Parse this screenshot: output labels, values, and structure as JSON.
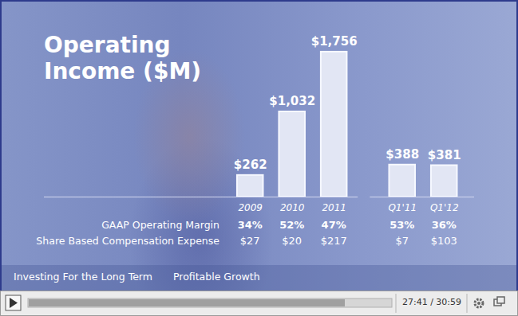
{
  "chart_data": {
    "type": "bar",
    "title": "Operating Income ($M)",
    "categories": [
      "2009",
      "2010",
      "2011",
      "Q1'11",
      "Q1'12"
    ],
    "values": [
      262,
      1032,
      1756,
      388,
      381
    ],
    "value_labels": [
      "$262",
      "$1,032",
      "$1,756",
      "$388",
      "$381"
    ],
    "data_labels": true,
    "color": "#e2e6f4",
    "ylim": [
      0,
      1900
    ],
    "tick_labels": "x",
    "table": {
      "rows": [
        {
          "label": "GAAP Operating Margin",
          "values": [
            34,
            52,
            47,
            53,
            36
          ],
          "value_labels": [
            "34%",
            "52%",
            "47%",
            "53%",
            "36%"
          ]
        },
        {
          "label": "Share Based Compensation Expense",
          "values": [
            27,
            20,
            217,
            7,
            103
          ],
          "value_labels": [
            "$27",
            "$20",
            "$217",
            "$7",
            "$103"
          ]
        }
      ]
    },
    "footer": [
      "Investing For the Long Term",
      "Profitable Growth"
    ]
  },
  "player": {
    "time": "27:41 / 30:59"
  }
}
